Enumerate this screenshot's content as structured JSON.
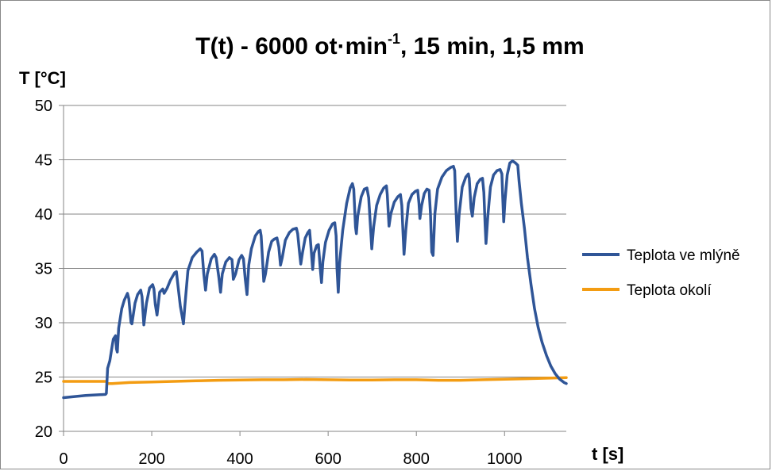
{
  "chart_data": {
    "type": "line",
    "title": {
      "main": "T(t) - 6000 ot·min",
      "superscript": "-1",
      "suffix": ", 15 min, 1,5 mm"
    },
    "xlabel": "t [s]",
    "ylabel": "T [°C]",
    "xlim": [
      0,
      1140
    ],
    "ylim": [
      20,
      50
    ],
    "x_ticks": [
      0,
      200,
      400,
      600,
      800,
      1000
    ],
    "y_ticks": [
      20,
      25,
      30,
      35,
      40,
      45,
      50
    ],
    "x_tick_labels": [
      "0",
      "200",
      "400",
      "600",
      "800",
      "1000"
    ],
    "y_tick_labels": [
      "20",
      "25",
      "30",
      "35",
      "40",
      "45",
      "50"
    ],
    "grid": "horizontal",
    "legend_placement": "right",
    "series": [
      {
        "name": "Teplota ve mlýně",
        "color": "#2f5597",
        "points": [
          [
            0,
            23.1
          ],
          [
            50,
            23.3
          ],
          [
            95,
            23.4
          ],
          [
            97,
            23.5
          ],
          [
            100,
            25.8
          ],
          [
            105,
            26.5
          ],
          [
            110,
            27.8
          ],
          [
            113,
            28.5
          ],
          [
            118,
            28.8
          ],
          [
            120,
            27.6
          ],
          [
            122,
            27.3
          ],
          [
            125,
            29.5
          ],
          [
            132,
            31.3
          ],
          [
            138,
            32.1
          ],
          [
            145,
            32.7
          ],
          [
            148,
            32.2
          ],
          [
            153,
            30.0
          ],
          [
            155,
            29.9
          ],
          [
            162,
            31.8
          ],
          [
            168,
            32.6
          ],
          [
            175,
            33.0
          ],
          [
            178,
            32.4
          ],
          [
            182,
            29.8
          ],
          [
            188,
            31.8
          ],
          [
            195,
            33.2
          ],
          [
            202,
            33.5
          ],
          [
            205,
            33.1
          ],
          [
            208,
            31.7
          ],
          [
            212,
            30.7
          ],
          [
            218,
            32.8
          ],
          [
            225,
            33.1
          ],
          [
            228,
            32.7
          ],
          [
            235,
            33.2
          ],
          [
            242,
            33.9
          ],
          [
            252,
            34.6
          ],
          [
            256,
            34.7
          ],
          [
            260,
            33.2
          ],
          [
            265,
            31.5
          ],
          [
            268,
            30.8
          ],
          [
            272,
            29.9
          ],
          [
            275,
            31.5
          ],
          [
            282,
            34.8
          ],
          [
            292,
            36.0
          ],
          [
            302,
            36.5
          ],
          [
            310,
            36.8
          ],
          [
            314,
            36.6
          ],
          [
            318,
            34.5
          ],
          [
            322,
            33.0
          ],
          [
            326,
            34.5
          ],
          [
            335,
            35.9
          ],
          [
            342,
            36.3
          ],
          [
            346,
            36.0
          ],
          [
            352,
            34.2
          ],
          [
            356,
            32.8
          ],
          [
            360,
            34.5
          ],
          [
            368,
            35.6
          ],
          [
            376,
            36.0
          ],
          [
            382,
            35.8
          ],
          [
            385,
            34.0
          ],
          [
            390,
            34.5
          ],
          [
            398,
            35.8
          ],
          [
            404,
            36.2
          ],
          [
            408,
            35.9
          ],
          [
            412,
            34.0
          ],
          [
            416,
            32.6
          ],
          [
            420,
            35.3
          ],
          [
            426,
            36.8
          ],
          [
            435,
            38.0
          ],
          [
            442,
            38.4
          ],
          [
            446,
            38.5
          ],
          [
            448,
            38.0
          ],
          [
            451,
            36.0
          ],
          [
            454,
            33.8
          ],
          [
            458,
            34.5
          ],
          [
            465,
            36.5
          ],
          [
            472,
            37.5
          ],
          [
            478,
            37.7
          ],
          [
            484,
            37.8
          ],
          [
            488,
            37.0
          ],
          [
            492,
            35.3
          ],
          [
            496,
            36.0
          ],
          [
            503,
            37.6
          ],
          [
            512,
            38.3
          ],
          [
            520,
            38.6
          ],
          [
            528,
            38.7
          ],
          [
            531,
            38.2
          ],
          [
            535,
            36.5
          ],
          [
            538,
            35.4
          ],
          [
            542,
            36.5
          ],
          [
            548,
            37.8
          ],
          [
            554,
            38.3
          ],
          [
            558,
            38.5
          ],
          [
            561,
            37.0
          ],
          [
            565,
            34.9
          ],
          [
            568,
            36.4
          ],
          [
            574,
            37.1
          ],
          [
            578,
            37.2
          ],
          [
            582,
            35.0
          ],
          [
            585,
            33.7
          ],
          [
            588,
            35.6
          ],
          [
            594,
            37.4
          ],
          [
            602,
            38.5
          ],
          [
            610,
            39.1
          ],
          [
            615,
            39.2
          ],
          [
            618,
            38.0
          ],
          [
            620,
            35.0
          ],
          [
            623,
            32.8
          ],
          [
            626,
            35.5
          ],
          [
            633,
            38.5
          ],
          [
            642,
            41.0
          ],
          [
            650,
            42.4
          ],
          [
            655,
            42.8
          ],
          [
            658,
            42.3
          ],
          [
            662,
            38.8
          ],
          [
            664,
            38.2
          ],
          [
            667,
            39.8
          ],
          [
            675,
            41.6
          ],
          [
            682,
            42.3
          ],
          [
            688,
            42.4
          ],
          [
            692,
            41.5
          ],
          [
            696,
            38.8
          ],
          [
            699,
            36.8
          ],
          [
            703,
            38.8
          ],
          [
            710,
            40.8
          ],
          [
            718,
            41.8
          ],
          [
            726,
            42.4
          ],
          [
            732,
            42.6
          ],
          [
            734,
            41.8
          ],
          [
            738,
            38.9
          ],
          [
            742,
            40.0
          ],
          [
            750,
            41.1
          ],
          [
            758,
            41.6
          ],
          [
            764,
            41.8
          ],
          [
            767,
            40.8
          ],
          [
            770,
            38.0
          ],
          [
            772,
            36.3
          ],
          [
            776,
            38.5
          ],
          [
            782,
            41.0
          ],
          [
            790,
            41.8
          ],
          [
            798,
            42.1
          ],
          [
            803,
            42.2
          ],
          [
            806,
            41.0
          ],
          [
            808,
            39.6
          ],
          [
            812,
            40.8
          ],
          [
            818,
            41.9
          ],
          [
            824,
            42.3
          ],
          [
            829,
            42.2
          ],
          [
            832,
            40.0
          ],
          [
            835,
            36.5
          ],
          [
            838,
            36.2
          ],
          [
            842,
            40.0
          ],
          [
            848,
            42.3
          ],
          [
            858,
            43.4
          ],
          [
            868,
            44.0
          ],
          [
            878,
            44.3
          ],
          [
            884,
            44.4
          ],
          [
            887,
            44.0
          ],
          [
            890,
            40.3
          ],
          [
            893,
            37.5
          ],
          [
            897,
            40.0
          ],
          [
            904,
            42.5
          ],
          [
            912,
            43.4
          ],
          [
            918,
            43.7
          ],
          [
            920,
            43.3
          ],
          [
            924,
            40.5
          ],
          [
            927,
            39.8
          ],
          [
            931,
            41.5
          ],
          [
            938,
            42.8
          ],
          [
            945,
            43.2
          ],
          [
            950,
            43.3
          ],
          [
            953,
            42.0
          ],
          [
            956,
            39.0
          ],
          [
            958,
            37.3
          ],
          [
            962,
            39.8
          ],
          [
            968,
            42.5
          ],
          [
            975,
            43.6
          ],
          [
            983,
            44.0
          ],
          [
            990,
            44.1
          ],
          [
            994,
            43.7
          ],
          [
            996,
            41.5
          ],
          [
            998,
            39.3
          ],
          [
            1001,
            41.2
          ],
          [
            1006,
            43.6
          ],
          [
            1012,
            44.7
          ],
          [
            1018,
            44.9
          ],
          [
            1025,
            44.7
          ],
          [
            1030,
            44.5
          ],
          [
            1033,
            43.0
          ],
          [
            1038,
            41.0
          ],
          [
            1045,
            38.7
          ],
          [
            1052,
            36.0
          ],
          [
            1060,
            33.5
          ],
          [
            1068,
            31.3
          ],
          [
            1076,
            29.6
          ],
          [
            1085,
            28.2
          ],
          [
            1095,
            27.0
          ],
          [
            1105,
            26.0
          ],
          [
            1115,
            25.3
          ],
          [
            1125,
            24.8
          ],
          [
            1135,
            24.5
          ],
          [
            1140,
            24.4
          ]
        ]
      },
      {
        "name": "Teplota okolí",
        "color": "#f39c12",
        "points": [
          [
            0,
            24.6
          ],
          [
            50,
            24.6
          ],
          [
            97,
            24.6
          ],
          [
            100,
            24.4
          ],
          [
            110,
            24.4
          ],
          [
            150,
            24.5
          ],
          [
            200,
            24.55
          ],
          [
            250,
            24.6
          ],
          [
            300,
            24.65
          ],
          [
            350,
            24.7
          ],
          [
            400,
            24.72
          ],
          [
            450,
            24.75
          ],
          [
            500,
            24.75
          ],
          [
            550,
            24.78
          ],
          [
            600,
            24.75
          ],
          [
            650,
            24.72
          ],
          [
            700,
            24.72
          ],
          [
            750,
            24.75
          ],
          [
            800,
            24.75
          ],
          [
            850,
            24.7
          ],
          [
            900,
            24.7
          ],
          [
            950,
            24.75
          ],
          [
            1000,
            24.8
          ],
          [
            1050,
            24.85
          ],
          [
            1100,
            24.9
          ],
          [
            1140,
            24.95
          ]
        ]
      }
    ]
  }
}
